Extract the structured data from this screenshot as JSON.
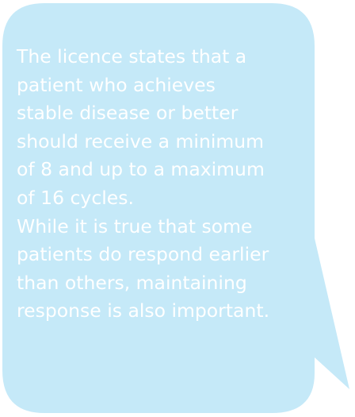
{
  "speech_bubble": {
    "fill_color": "#c5e9f8",
    "text_color": "#ffffff",
    "lines": [
      "The licence states that a",
      "patient who achieves",
      "stable disease or better",
      "should receive a minimum",
      "of 8 and up to a maximum",
      "of 16 cycles.",
      "While it is true that some",
      "patients do respond earlier",
      "than others, maintaining",
      "response is also important."
    ]
  }
}
